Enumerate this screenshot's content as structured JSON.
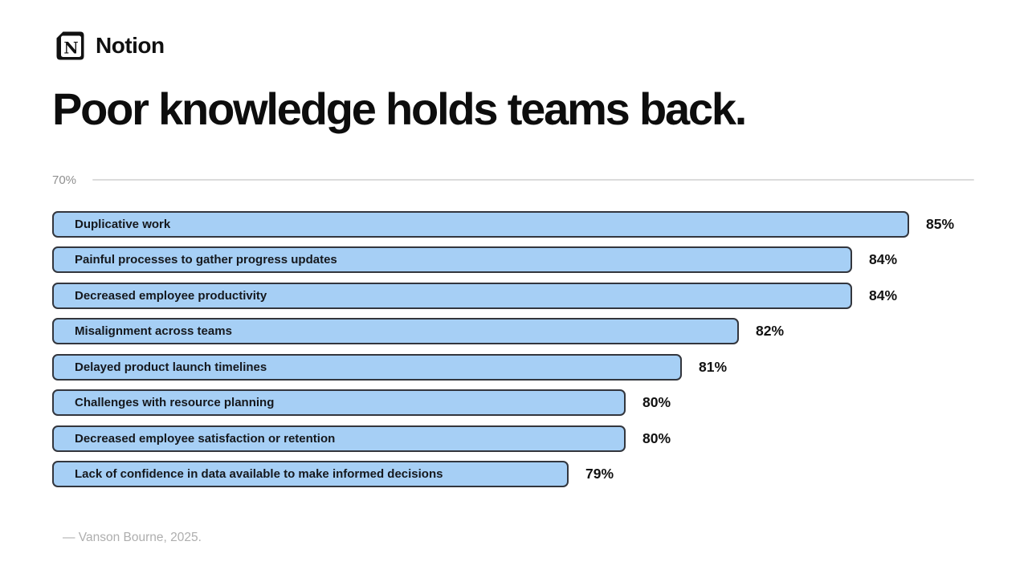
{
  "brand": {
    "name": "Notion",
    "logo_letter": "N"
  },
  "title": "Poor knowledge holds teams back.",
  "chart_data": {
    "type": "bar",
    "orientation": "horizontal",
    "title": "Poor knowledge holds teams back.",
    "axis_tick_label": "70%",
    "axis_min": 70,
    "categories": [
      "Duplicative work",
      "Painful processes to gather progress updates",
      "Decreased employee productivity",
      "Misalignment across teams",
      "Delayed product launch timelines",
      "Challenges with resource planning",
      "Decreased employee satisfaction or retention",
      "Lack of confidence in data available to make informed decisions"
    ],
    "values": [
      85,
      84,
      84,
      82,
      81,
      80,
      80,
      79
    ],
    "value_suffix": "%",
    "xlim": [
      70,
      87
    ],
    "legend": "none",
    "grid": "single horizontal line at top (70% tick)",
    "colors": {
      "bar_fill": "#A6CFF5",
      "bar_border": "#33363D",
      "axis_line": "#DBDBDB",
      "axis_label_text": "#8F8F8F",
      "value_label_text": "#121212"
    }
  },
  "footer": {
    "source": "— Vanson Bourne, 2025."
  }
}
